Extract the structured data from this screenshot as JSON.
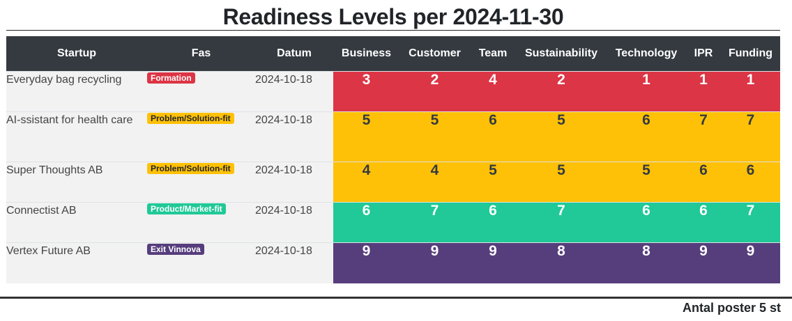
{
  "title": "Readiness Levels per 2024-11-30",
  "columns": [
    "Startup",
    "Fas",
    "Datum",
    "Business",
    "Customer",
    "Team",
    "Sustainability",
    "Technology",
    "IPR",
    "Funding"
  ],
  "rows": [
    {
      "startup": "Everyday bag recycling",
      "fas": "Formation",
      "fas_color": "#dc3545",
      "fas_text_color": "#ffffff",
      "datum": "2024-10-18",
      "row_color": "#dc3545",
      "score_text_color": "#ffffff",
      "scores": [
        "3",
        "2",
        "4",
        "2",
        "1",
        "1",
        "1"
      ]
    },
    {
      "startup": "AI-ssistant for health care",
      "fas": "Problem/Solution-fit",
      "fas_color": "#ffc107",
      "fas_text_color": "#212529",
      "datum": "2024-10-18",
      "row_color": "#ffc107",
      "score_text_color": "#343a40",
      "scores": [
        "5",
        "5",
        "6",
        "5",
        "6",
        "7",
        "7"
      ]
    },
    {
      "startup": "Super Thoughts AB",
      "fas": "Problem/Solution-fit",
      "fas_color": "#ffc107",
      "fas_text_color": "#212529",
      "datum": "2024-10-18",
      "row_color": "#ffc107",
      "score_text_color": "#343a40",
      "scores": [
        "4",
        "4",
        "5",
        "5",
        "5",
        "6",
        "6"
      ]
    },
    {
      "startup": "Connectist AB",
      "fas": "Product/Market-fit",
      "fas_color": "#20c997",
      "fas_text_color": "#ffffff",
      "datum": "2024-10-18",
      "row_color": "#20c997",
      "score_text_color": "#ffffff",
      "scores": [
        "6",
        "7",
        "6",
        "7",
        "6",
        "6",
        "7"
      ]
    },
    {
      "startup": "Vertex Future AB",
      "fas": "Exit Vinnova",
      "fas_color": "#563d7c",
      "fas_text_color": "#ffffff",
      "datum": "2024-10-18",
      "row_color": "#563d7c",
      "score_text_color": "#ffffff",
      "scores": [
        "9",
        "9",
        "9",
        "8",
        "8",
        "9",
        "9"
      ]
    }
  ],
  "footer": "Antal poster 5 st"
}
